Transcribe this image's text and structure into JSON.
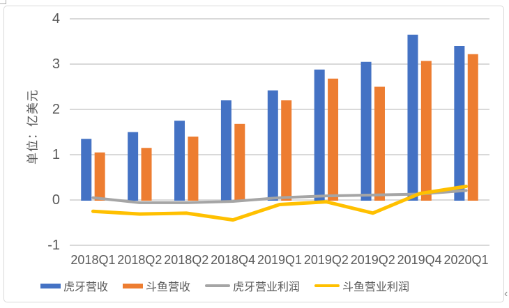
{
  "chart_data": {
    "type": "bar",
    "title": "",
    "ylabel": "单位：亿美元",
    "xlabel": "",
    "categories": [
      "2018Q1",
      "2018Q2",
      "2018Q2",
      "2018Q4",
      "2019Q1",
      "2019Q2",
      "2019Q2",
      "2019Q4",
      "2020Q1"
    ],
    "series": [
      {
        "name": "虎牙营收",
        "type": "bar",
        "color": "#4472C4",
        "values": [
          1.35,
          1.5,
          1.75,
          2.2,
          2.42,
          2.88,
          3.05,
          3.65,
          3.4
        ]
      },
      {
        "name": "斗鱼营收",
        "type": "bar",
        "color": "#ED7D31",
        "values": [
          1.05,
          1.15,
          1.4,
          1.68,
          2.2,
          2.68,
          2.5,
          3.07,
          3.22
        ]
      },
      {
        "name": "虎牙营业利润",
        "type": "line",
        "color": "#A5A5A5",
        "values": [
          0.05,
          -0.06,
          -0.06,
          -0.03,
          0.05,
          0.09,
          0.11,
          0.13,
          0.21
        ]
      },
      {
        "name": "斗鱼营业利润",
        "type": "line",
        "color": "#FFC000",
        "values": [
          -0.25,
          -0.31,
          -0.29,
          -0.44,
          -0.1,
          -0.04,
          -0.29,
          0.14,
          0.3
        ]
      }
    ],
    "y_ticks": [
      4,
      3,
      2,
      1,
      0,
      -1
    ],
    "ylim": [
      -1,
      4
    ],
    "grid": true,
    "legend_position": "bottom"
  },
  "colors": {
    "grid": "#D9D9D9",
    "border": "#D9D9D9",
    "axis_text": "#595959",
    "background": "#FFFFFF"
  }
}
